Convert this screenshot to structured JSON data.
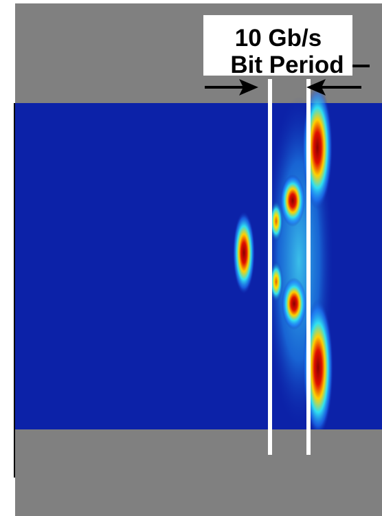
{
  "annotation": {
    "line1": "10 Gb/s",
    "line2": "Bit Period"
  }
}
